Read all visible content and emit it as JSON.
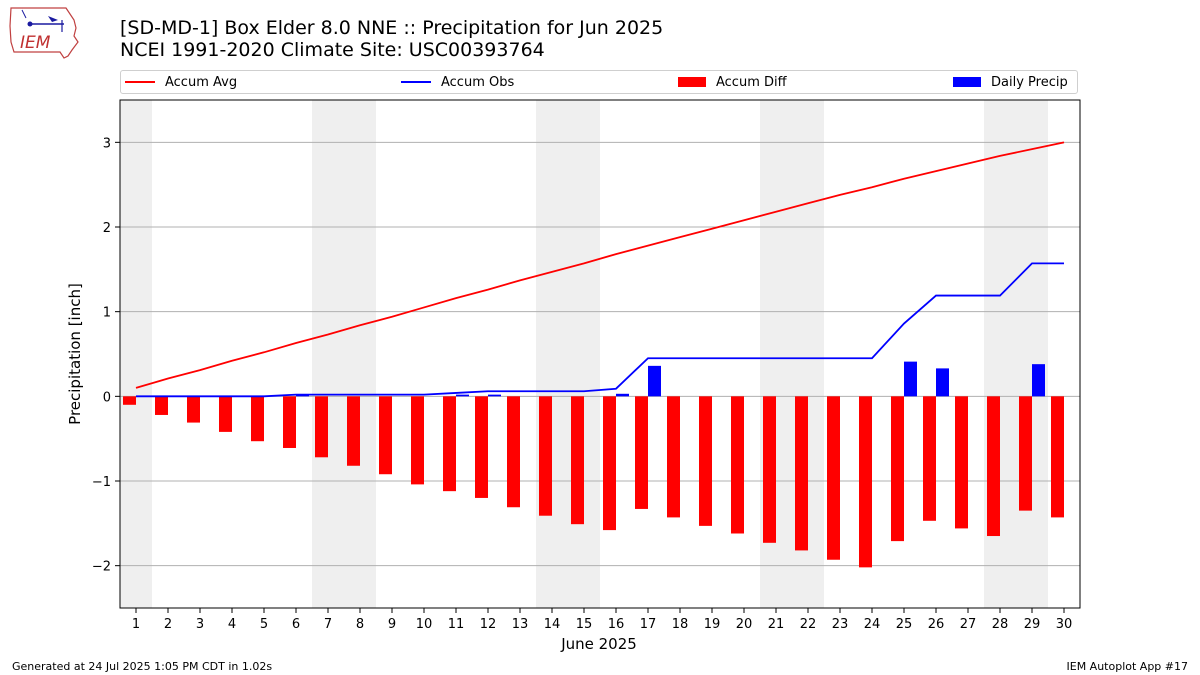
{
  "header": {
    "title_line1": "[SD-MD-1] Box Elder 8.0 NNE :: Precipitation for Jun 2025",
    "title_line2": "NCEI 1991-2020 Climate Site: USC00393764",
    "logo_text": "IEM"
  },
  "footer": {
    "generated": "Generated at 24 Jul 2025 1:05 PM CDT in 1.02s",
    "app": "IEM Autoplot App #17"
  },
  "legend": {
    "accum_avg": "Accum Avg",
    "accum_obs": "Accum Obs",
    "accum_diff": "Accum Diff",
    "daily_precip": "Daily Precip"
  },
  "colors": {
    "accum_avg": "#ff0000",
    "accum_obs": "#0000ff",
    "accum_diff": "#ff0000",
    "daily_precip": "#0000ff",
    "weekend_shade": "#efefef",
    "grid": "#b0b0b0"
  },
  "chart_data": {
    "type": "bar",
    "xlabel": "June 2025",
    "ylabel": "Precipitation [inch]",
    "ylim": [
      -2.5,
      3.5
    ],
    "yticks": [
      -2,
      -1,
      0,
      1,
      2,
      3
    ],
    "ytick_labels": [
      "−2",
      "−1",
      "0",
      "1",
      "2",
      "3"
    ],
    "grid": "horizontal",
    "legend_placement": "top",
    "days": [
      1,
      2,
      3,
      4,
      5,
      6,
      7,
      8,
      9,
      10,
      11,
      12,
      13,
      14,
      15,
      16,
      17,
      18,
      19,
      20,
      21,
      22,
      23,
      24,
      25,
      26,
      27,
      28,
      29,
      30
    ],
    "weekend_days": [
      1,
      7,
      8,
      14,
      15,
      21,
      22,
      28,
      29
    ],
    "series": [
      {
        "name": "Accum Avg",
        "type": "line",
        "values": [
          0.1,
          0.21,
          0.31,
          0.42,
          0.52,
          0.63,
          0.73,
          0.84,
          0.94,
          1.05,
          1.16,
          1.26,
          1.37,
          1.47,
          1.57,
          1.68,
          1.78,
          1.88,
          1.98,
          2.08,
          2.18,
          2.28,
          2.38,
          2.47,
          2.57,
          2.66,
          2.75,
          2.84,
          2.92,
          3.0
        ]
      },
      {
        "name": "Accum Obs",
        "type": "line",
        "values": [
          0.0,
          0.0,
          0.0,
          0.0,
          0.0,
          0.02,
          0.02,
          0.02,
          0.02,
          0.02,
          0.04,
          0.06,
          0.06,
          0.06,
          0.06,
          0.09,
          0.45,
          0.45,
          0.45,
          0.45,
          0.45,
          0.45,
          0.45,
          0.45,
          0.86,
          1.19,
          1.19,
          1.19,
          1.57,
          1.57
        ]
      },
      {
        "name": "Accum Diff",
        "type": "bar",
        "values": [
          -0.1,
          -0.22,
          -0.31,
          -0.42,
          -0.53,
          -0.61,
          -0.72,
          -0.82,
          -0.92,
          -1.04,
          -1.12,
          -1.2,
          -1.31,
          -1.41,
          -1.51,
          -1.58,
          -1.33,
          -1.43,
          -1.53,
          -1.62,
          -1.73,
          -1.82,
          -1.93,
          -2.02,
          -1.71,
          -1.47,
          -1.56,
          -1.65,
          -1.35,
          -1.43
        ]
      },
      {
        "name": "Daily Precip",
        "type": "bar",
        "values": [
          0,
          0,
          0,
          0,
          0,
          0.02,
          0,
          0,
          0,
          0,
          0.02,
          0.02,
          0,
          0,
          0,
          0.03,
          0.36,
          0,
          0,
          0,
          0,
          0,
          0,
          0,
          0.41,
          0.33,
          0,
          0,
          0.38,
          0
        ]
      }
    ]
  }
}
